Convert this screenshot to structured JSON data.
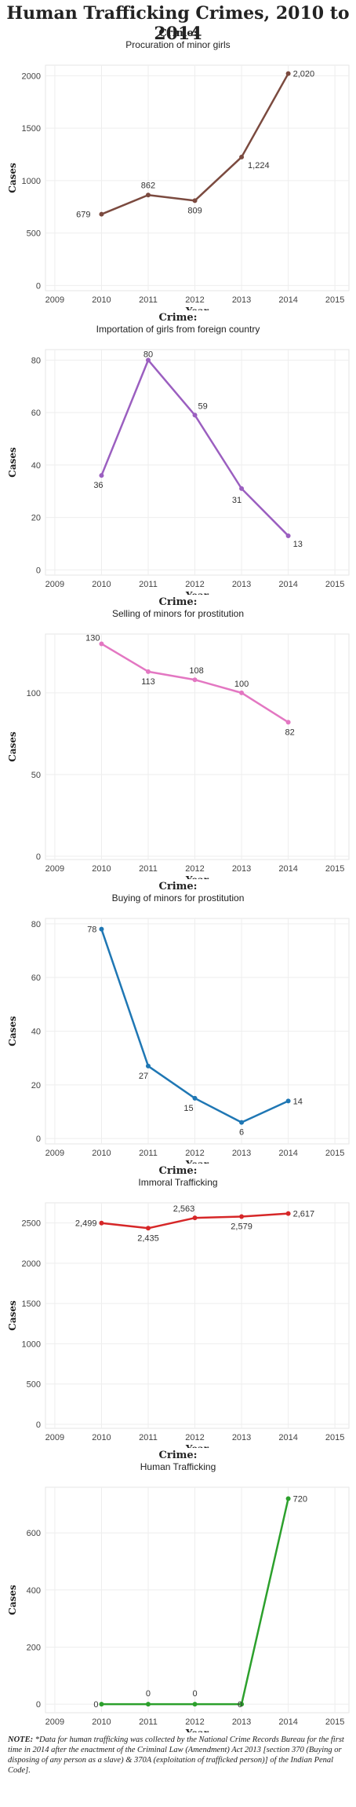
{
  "title": "Human Trafficking Crimes, 2010 to 2014",
  "facet_label": "Crime:",
  "note": {
    "label": "NOTE:",
    "text": "*Data for human trafficking was collected by the National Crime Records Bureau for the first time in 2014 after the enactment of the Criminal Law (Amendment) Act 2013 [section 370 (Buying or disposing of any person as a slave) & 370A (exploitation of trafficked person)] of the Indian Penal Code]."
  },
  "chart_data": [
    {
      "type": "line",
      "title": "Procuration of minor girls",
      "xlabel": "Year",
      "ylabel": "Cases",
      "x_ticks": [
        2009,
        2010,
        2011,
        2012,
        2013,
        2014,
        2015
      ],
      "y_ticks": [
        0,
        500,
        1000,
        1500,
        2000
      ],
      "x": [
        2010,
        2011,
        2012,
        2013,
        2014
      ],
      "values": [
        679,
        862,
        809,
        1224,
        2020
      ],
      "data_labels": [
        "679",
        "862",
        "809",
        "1,224",
        "2,020"
      ],
      "xlim": [
        2008.8,
        2015.3
      ],
      "ylim": [
        -50,
        2100
      ],
      "color": "#7b4a3f",
      "grid": true
    },
    {
      "type": "line",
      "title": "Importation of girls from foreign country",
      "xlabel": "Year",
      "ylabel": "Cases",
      "x_ticks": [
        2009,
        2010,
        2011,
        2012,
        2013,
        2014,
        2015
      ],
      "y_ticks": [
        0,
        20,
        40,
        60,
        80
      ],
      "x": [
        2010,
        2011,
        2012,
        2013,
        2014
      ],
      "values": [
        36,
        80,
        59,
        31,
        13
      ],
      "data_labels": [
        "36",
        "80",
        "59",
        "31",
        "13"
      ],
      "xlim": [
        2008.8,
        2015.3
      ],
      "ylim": [
        -2,
        84
      ],
      "color": "#9b5fc0",
      "grid": true
    },
    {
      "type": "line",
      "title": "Selling of minors for prostitution",
      "xlabel": "Year",
      "ylabel": "Cases",
      "x_ticks": [
        2009,
        2010,
        2011,
        2012,
        2013,
        2014,
        2015
      ],
      "y_ticks": [
        0,
        50,
        100
      ],
      "x": [
        2010,
        2011,
        2012,
        2013,
        2014
      ],
      "values": [
        130,
        113,
        108,
        100,
        82
      ],
      "data_labels": [
        "130",
        "113",
        "108",
        "100",
        "82"
      ],
      "xlim": [
        2008.8,
        2015.3
      ],
      "ylim": [
        -2,
        136
      ],
      "color": "#e377c2",
      "grid": true
    },
    {
      "type": "line",
      "title": "Buying of minors for prostitution",
      "xlabel": "Year",
      "ylabel": "Cases",
      "x_ticks": [
        2009,
        2010,
        2011,
        2012,
        2013,
        2014,
        2015
      ],
      "y_ticks": [
        0,
        20,
        40,
        60,
        80
      ],
      "x": [
        2010,
        2011,
        2012,
        2013,
        2014
      ],
      "values": [
        78,
        27,
        15,
        6,
        14
      ],
      "data_labels": [
        "78",
        "27",
        "15",
        "6",
        "14"
      ],
      "xlim": [
        2008.8,
        2015.3
      ],
      "ylim": [
        -2,
        82
      ],
      "color": "#1f77b4",
      "grid": true
    },
    {
      "type": "line",
      "title": "Immoral Trafficking",
      "xlabel": "Year",
      "ylabel": "Cases",
      "x_ticks": [
        2009,
        2010,
        2011,
        2012,
        2013,
        2014,
        2015
      ],
      "y_ticks": [
        0,
        500,
        1000,
        1500,
        2000,
        2500
      ],
      "x": [
        2010,
        2011,
        2012,
        2013,
        2014
      ],
      "values": [
        2499,
        2435,
        2563,
        2579,
        2617
      ],
      "data_labels": [
        "2,499",
        "2,435",
        "2,563",
        "2,579",
        "2,617"
      ],
      "xlim": [
        2008.8,
        2015.3
      ],
      "ylim": [
        -50,
        2750
      ],
      "color": "#d62728",
      "grid": true
    },
    {
      "type": "line",
      "title": "Human Trafficking",
      "xlabel": "Year",
      "ylabel": "Cases",
      "x_ticks": [
        2009,
        2010,
        2011,
        2012,
        2013,
        2014,
        2015
      ],
      "y_ticks": [
        0,
        200,
        400,
        600
      ],
      "x": [
        2010,
        2011,
        2012,
        2013,
        2014
      ],
      "values": [
        0,
        0,
        0,
        0,
        720
      ],
      "data_labels": [
        "0",
        "0",
        "0",
        "0",
        "720"
      ],
      "xlim": [
        2008.8,
        2015.3
      ],
      "ylim": [
        -30,
        760
      ],
      "color": "#2ca02c",
      "grid": true
    }
  ]
}
